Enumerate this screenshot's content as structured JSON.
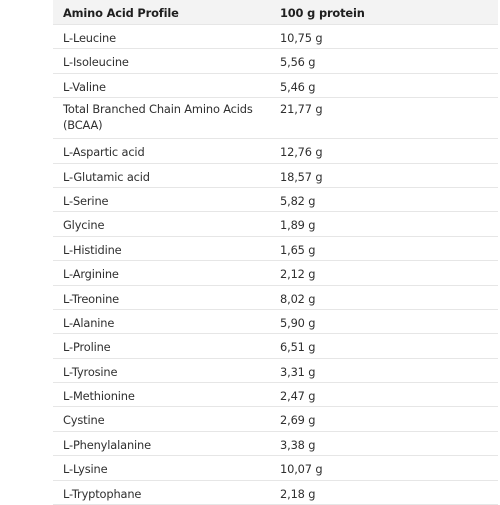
{
  "table": {
    "headers": {
      "name": "Amino Acid Profile",
      "value": "100 g protein"
    },
    "rows": [
      {
        "name": "L-Leucine",
        "value": "10,75 g"
      },
      {
        "name": "L-Isoleucine",
        "value": "5,56 g"
      },
      {
        "name": "L-Valine",
        "value": "5,46 g"
      },
      {
        "name": "Total Branched Chain Amino Acids (BCAA)",
        "value": "21,77 g"
      },
      {
        "name": "L-Aspartic acid",
        "value": "12,76 g"
      },
      {
        "name": "L-Glutamic acid",
        "value": "18,57 g"
      },
      {
        "name": "L-Serine",
        "value": "5,82 g"
      },
      {
        "name": "Glycine",
        "value": "1,89 g"
      },
      {
        "name": "L-Histidine",
        "value": "1,65 g"
      },
      {
        "name": "L-Arginine",
        "value": "2,12 g"
      },
      {
        "name": "L-Treonine",
        "value": "8,02 g"
      },
      {
        "name": "L-Alanine",
        "value": "5,90 g"
      },
      {
        "name": "L-Proline",
        "value": "6,51 g"
      },
      {
        "name": "L-Tyrosine",
        "value": "3,31 g"
      },
      {
        "name": "L-Methionine",
        "value": "2,47 g"
      },
      {
        "name": "Cystine",
        "value": "2,69 g"
      },
      {
        "name": "L-Phenylalanine",
        "value": "3,38 g"
      },
      {
        "name": "L-Lysine",
        "value": "10,07 g"
      },
      {
        "name": "L-Tryptophane",
        "value": "2,18 g"
      }
    ]
  }
}
